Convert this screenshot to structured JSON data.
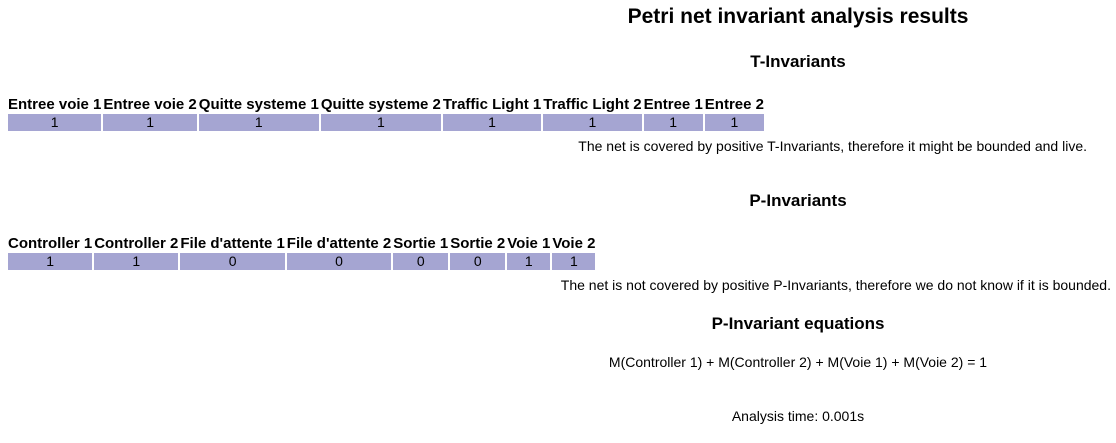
{
  "title": "Petri net invariant analysis results",
  "t_invariants": {
    "heading": "T-Invariants",
    "columns": [
      "Entree voie 1",
      "Entree voie 2",
      "Quitte systeme 1",
      "Quitte systeme 2",
      "Traffic Light 1",
      "Traffic Light 2",
      "Entree 1",
      "Entree 2"
    ],
    "values": [
      "1",
      "1",
      "1",
      "1",
      "1",
      "1",
      "1",
      "1"
    ],
    "note": "The net is covered by positive T-Invariants, therefore it might be bounded and live."
  },
  "p_invariants": {
    "heading": "P-Invariants",
    "columns": [
      "Controller 1",
      "Controller 2",
      "File d'attente 1",
      "File d'attente 2",
      "Sortie 1",
      "Sortie 2",
      "Voie 1",
      "Voie 2"
    ],
    "values": [
      "1",
      "1",
      "0",
      "0",
      "0",
      "0",
      "1",
      "1"
    ],
    "note": "The net is not covered by positive P-Invariants, therefore we do not know if it is bounded."
  },
  "equations": {
    "heading": "P-Invariant equations",
    "lines": [
      "M(Controller 1) + M(Controller 2) + M(Voie 1) + M(Voie 2) = 1"
    ]
  },
  "analysis_time": "Analysis time: 0.001s",
  "colors": {
    "cell_background": "#a5a5d2",
    "text": "#000000",
    "page_background": "#ffffff"
  }
}
